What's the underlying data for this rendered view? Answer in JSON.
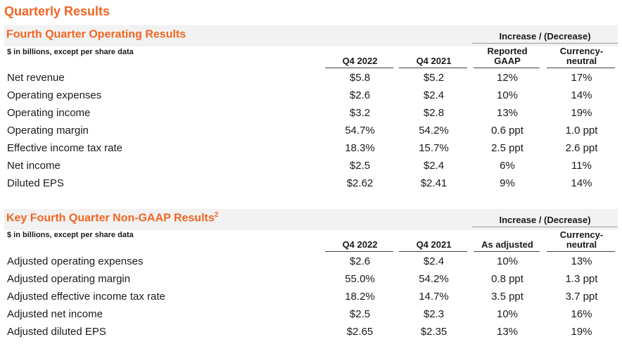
{
  "page": {
    "title": "Quarterly Results"
  },
  "gaap": {
    "title": "Fourth Quarter Operating Results",
    "footnote_mark": "",
    "note": "$ in billions, except per share data",
    "group_header": "Increase / (Decrease)",
    "columns": [
      "Q4 2022",
      "Q4 2021",
      "Reported GAAP",
      "Currency-neutral"
    ],
    "column_lines": [
      [
        "Q4 2022"
      ],
      [
        "Q4 2021"
      ],
      [
        "Reported",
        "GAAP"
      ],
      [
        "Currency-",
        "neutral"
      ]
    ],
    "rows": [
      {
        "label": "Net revenue",
        "values": [
          "$5.8",
          "$5.2",
          "12%",
          "17%"
        ]
      },
      {
        "label": "Operating expenses",
        "values": [
          "$2.6",
          "$2.4",
          "10%",
          "14%"
        ]
      },
      {
        "label": "Operating income",
        "values": [
          "$3.2",
          "$2.8",
          "13%",
          "19%"
        ]
      },
      {
        "label": "Operating margin",
        "values": [
          "54.7%",
          "54.2%",
          "0.6 ppt",
          "1.0 ppt"
        ]
      },
      {
        "label": "Effective income tax rate",
        "values": [
          "18.3%",
          "15.7%",
          "2.5 ppt",
          "2.6 ppt"
        ]
      },
      {
        "label": "Net income",
        "values": [
          "$2.5",
          "$2.4",
          "6%",
          "11%"
        ]
      },
      {
        "label": "Diluted EPS",
        "values": [
          "$2.62",
          "$2.41",
          "9%",
          "14%"
        ]
      }
    ]
  },
  "nongaap": {
    "title": "Key Fourth Quarter Non-GAAP Results",
    "footnote_mark": "2",
    "note": "$ in billions, except per share data",
    "group_header": "Increase / (Decrease)",
    "column_lines": [
      [
        "Q4 2022"
      ],
      [
        "Q4 2021"
      ],
      [
        "As adjusted"
      ],
      [
        "Currency-",
        "neutral"
      ]
    ],
    "rows": [
      {
        "label": "Adjusted operating expenses",
        "values": [
          "$2.6",
          "$2.4",
          "10%",
          "13%"
        ]
      },
      {
        "label": "Adjusted operating margin",
        "values": [
          "55.0%",
          "54.2%",
          "0.8 ppt",
          "1.3 ppt"
        ]
      },
      {
        "label": "Adjusted effective income tax rate",
        "values": [
          "18.2%",
          "14.7%",
          "3.5 ppt",
          "3.7 ppt"
        ]
      },
      {
        "label": "Adjusted net income",
        "values": [
          "$2.5",
          "$2.3",
          "10%",
          "16%"
        ]
      },
      {
        "label": "Adjusted diluted EPS",
        "values": [
          "$2.65",
          "$2.35",
          "13%",
          "19%"
        ]
      }
    ]
  }
}
